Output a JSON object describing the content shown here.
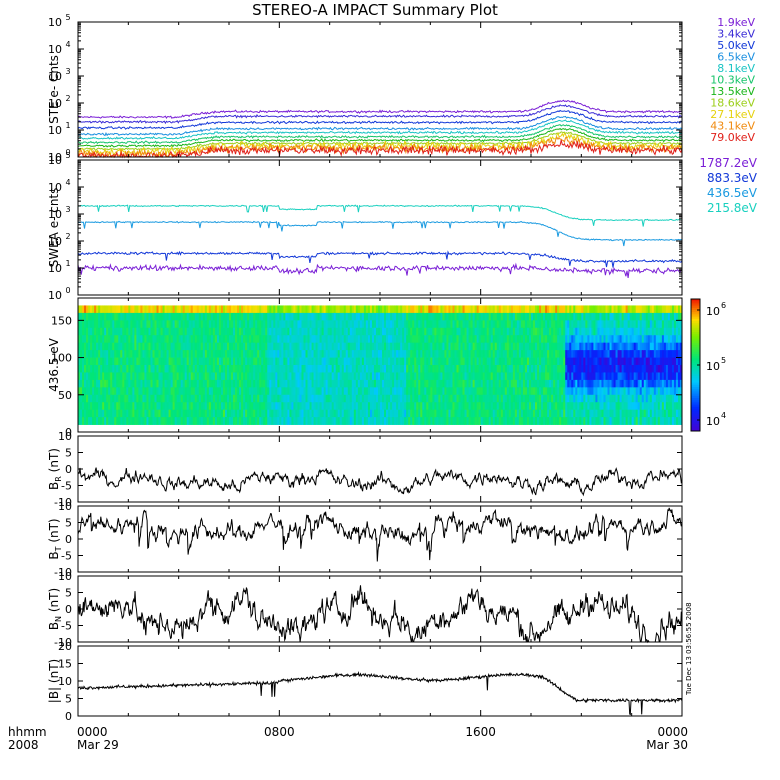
{
  "title": "STEREO-A IMPACT Summary Plot",
  "timestamp": "Tue Dec 13 03:56:55 2008",
  "x_axis": {
    "label_top": "hhmm",
    "label_bottom": "2008",
    "ticks": [
      {
        "t": 0,
        "top": "0000",
        "bottom": "Mar 29"
      },
      {
        "t": 8,
        "top": "0800",
        "bottom": ""
      },
      {
        "t": 16,
        "top": "1600",
        "bottom": ""
      },
      {
        "t": 24,
        "top": "0000",
        "bottom": "Mar 30"
      }
    ],
    "range_hours": [
      0,
      24
    ]
  },
  "chart_data": [
    {
      "type": "line",
      "id": "ste",
      "ylabel": "STE e- Cnts",
      "yscale": "log",
      "ylim_exp": [
        0,
        5
      ],
      "ytick_exps": [
        0,
        1,
        2,
        3,
        4,
        5
      ],
      "series": [
        {
          "name": "1.9keV",
          "color": "#7a1fd6",
          "base": 30,
          "peak": 120
        },
        {
          "name": "3.4keV",
          "color": "#3a2bd6",
          "base": 20,
          "peak": 80
        },
        {
          "name": "5.0keV",
          "color": "#1238d8",
          "base": 12,
          "peak": 50
        },
        {
          "name": "6.5keV",
          "color": "#1a8fe0",
          "base": 7,
          "peak": 30
        },
        {
          "name": "8.1keV",
          "color": "#19c4c4",
          "base": 5,
          "peak": 22
        },
        {
          "name": "10.3keV",
          "color": "#16c46a",
          "base": 3.5,
          "peak": 15
        },
        {
          "name": "13.5keV",
          "color": "#1ab51a",
          "base": 2.6,
          "peak": 11
        },
        {
          "name": "18.6keV",
          "color": "#9ccf1a",
          "base": 2.0,
          "peak": 8
        },
        {
          "name": "27.1keV",
          "color": "#e6d20f",
          "base": 1.6,
          "peak": 6
        },
        {
          "name": "43.1keV",
          "color": "#f08a0e",
          "base": 1.3,
          "peak": 4.5
        },
        {
          "name": "79.0keV",
          "color": "#e0201a",
          "base": 1.1,
          "peak": 3
        }
      ]
    },
    {
      "type": "line",
      "id": "swea",
      "ylabel": "SWEA e- cnts",
      "yscale": "log",
      "ylim_exp": [
        0,
        5
      ],
      "ytick_exps": [
        0,
        1,
        2,
        3,
        4,
        5
      ],
      "series": [
        {
          "name": "1787.2eV",
          "color": "#7a1fd6",
          "early": 10,
          "late": 8
        },
        {
          "name": "883.3eV",
          "color": "#1238d8",
          "early": 35,
          "late": 18
        },
        {
          "name": "436.5eV",
          "color": "#1a9ae0",
          "early": 500,
          "late": 110
        },
        {
          "name": "215.8eV",
          "color": "#19d0bf",
          "early": 2000,
          "late": 600
        }
      ]
    },
    {
      "type": "heatmap",
      "id": "pad",
      "ylabel": "436.5 eV",
      "ylim": [
        0,
        180
      ],
      "yticks": [
        0,
        50,
        100,
        150
      ],
      "colorbar": {
        "scale": "log",
        "ticks_exp": [
          4,
          5,
          6
        ]
      },
      "description_values": {
        "early_level_exp": 5.1,
        "late_core_exp": 4.1,
        "late_core_start_h": 19.3
      }
    },
    {
      "type": "line",
      "id": "br",
      "ylabel": "B_R (nT)",
      "ylim": [
        -10,
        10
      ],
      "yticks": [
        -10,
        -5,
        0,
        5,
        10
      ],
      "series": [
        {
          "name": "",
          "color": "#000000",
          "mean": -3.5,
          "amp": 2.2
        }
      ]
    },
    {
      "type": "line",
      "id": "bt",
      "ylabel": "B_T (nT)",
      "ylim": [
        -10,
        10
      ],
      "yticks": [
        -10,
        -5,
        0,
        5,
        10
      ],
      "series": [
        {
          "name": "",
          "color": "#000000",
          "mean": 3.5,
          "amp": 3
        }
      ]
    },
    {
      "type": "line",
      "id": "bn",
      "ylabel": "B_N (nT)",
      "ylim": [
        -10,
        10
      ],
      "yticks": [
        -10,
        -5,
        0,
        5,
        10
      ],
      "series": [
        {
          "name": "",
          "color": "#000000",
          "mean": -2,
          "amp": 5
        }
      ]
    },
    {
      "type": "line",
      "id": "bmag",
      "ylabel": "|B| (nT)",
      "ylim": [
        0,
        20
      ],
      "yticks": [
        0,
        5,
        10,
        15,
        20
      ],
      "series": [
        {
          "name": "",
          "color": "#000000",
          "early": 8,
          "mid": 11,
          "late": 4.5
        }
      ]
    }
  ]
}
